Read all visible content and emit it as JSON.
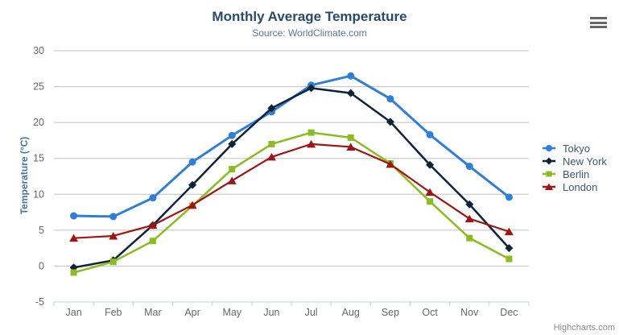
{
  "credits": "Highcharts.com",
  "toolbar": {
    "export_menu_icon": "hamburger"
  },
  "chart_data": {
    "type": "line",
    "title": "Monthly Average Temperature",
    "subtitle": "Source: WorldClimate.com",
    "xlabel": "",
    "ylabel": "Temperature (°C)",
    "categories": [
      "Jan",
      "Feb",
      "Mar",
      "Apr",
      "May",
      "Jun",
      "Jul",
      "Aug",
      "Sep",
      "Oct",
      "Nov",
      "Dec"
    ],
    "series": [
      {
        "name": "Tokyo",
        "color": "#2f7ed8",
        "marker": "circle",
        "line_width": 3,
        "values": [
          7.0,
          6.9,
          9.5,
          14.5,
          18.2,
          21.5,
          25.2,
          26.5,
          23.3,
          18.3,
          13.9,
          9.6
        ]
      },
      {
        "name": "New York",
        "color": "#0d233a",
        "marker": "diamond",
        "line_width": 2.5,
        "values": [
          -0.2,
          0.8,
          5.7,
          11.3,
          17.0,
          22.0,
          24.8,
          24.1,
          20.1,
          14.1,
          8.6,
          2.5
        ]
      },
      {
        "name": "Berlin",
        "color": "#8bbc21",
        "marker": "square",
        "line_width": 2.5,
        "values": [
          -0.9,
          0.6,
          3.5,
          8.4,
          13.5,
          17.0,
          18.6,
          17.9,
          14.3,
          9.0,
          3.9,
          1.0
        ]
      },
      {
        "name": "London",
        "color": "#a01414",
        "marker": "triangle",
        "line_width": 2.2,
        "values": [
          3.9,
          4.2,
          5.7,
          8.5,
          11.9,
          15.2,
          17.0,
          16.6,
          14.2,
          10.3,
          6.6,
          4.8
        ]
      }
    ],
    "ylim": [
      -5,
      30
    ],
    "y_tick_interval": 5,
    "grid": true,
    "legend_position": "right",
    "axis_colors": {
      "grid": "#c0c0c0",
      "axis_line": "#c0d0e0",
      "tick_label": "#666666",
      "y_title": "#4572a7"
    }
  }
}
